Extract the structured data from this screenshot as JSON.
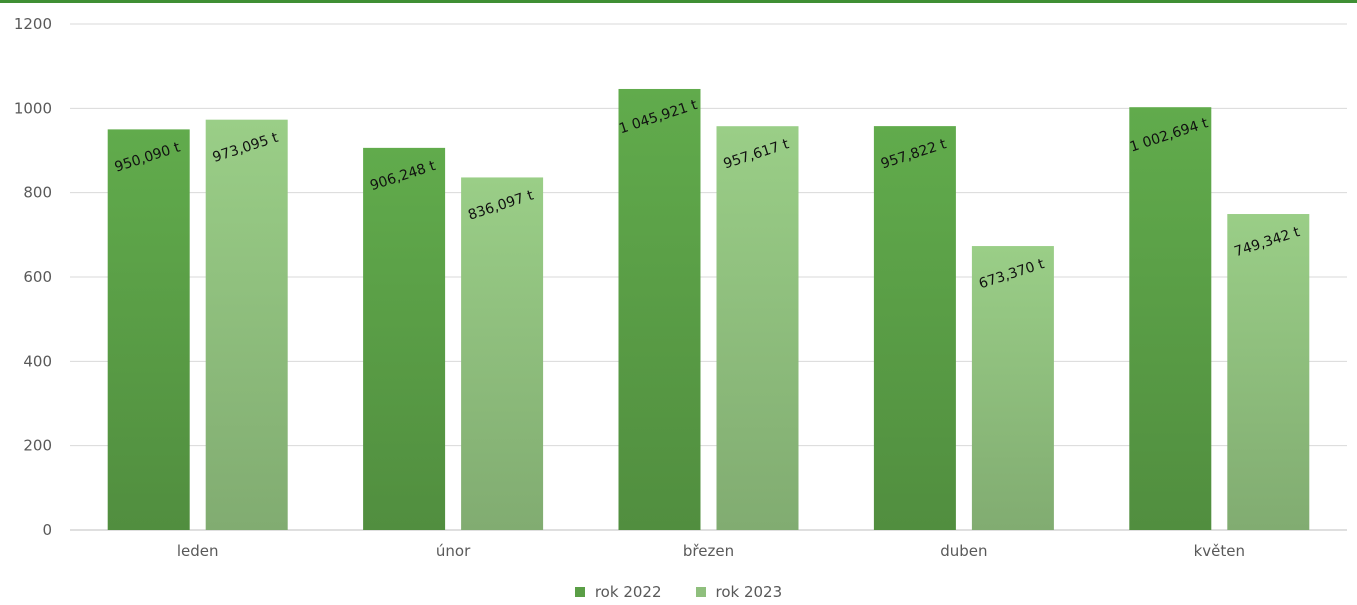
{
  "theme": {
    "top_rule_color": "#3f8f34",
    "grid_color": "#d9d9d9",
    "axis_color": "#bfbfbf"
  },
  "chart_data": {
    "type": "bar",
    "title": "",
    "xlabel": "",
    "ylabel": "",
    "ylim": [
      0,
      1200
    ],
    "yticks": [
      0,
      200,
      400,
      600,
      800,
      1000,
      1200
    ],
    "grid": true,
    "legend_position": "bottom",
    "categories": [
      "leden",
      "únor",
      "březen",
      "duben",
      "květen"
    ],
    "series": [
      {
        "name": "rok 2022",
        "color": "#5a9e46",
        "values": [
          950.09,
          906.248,
          1045.921,
          957.822,
          1002.694
        ],
        "data_labels": [
          "950,090 t",
          "906,248 t",
          "1 045,921 t",
          "957,822 t",
          "1 002,694 t"
        ]
      },
      {
        "name": "rok 2023",
        "color": "#8fbf7d",
        "values": [
          973.095,
          836.097,
          957.617,
          673.37,
          749.342
        ],
        "data_labels": [
          "973,095 t",
          "836,097 t",
          "957,617 t",
          "673,370 t",
          "749,342 t"
        ]
      }
    ]
  }
}
